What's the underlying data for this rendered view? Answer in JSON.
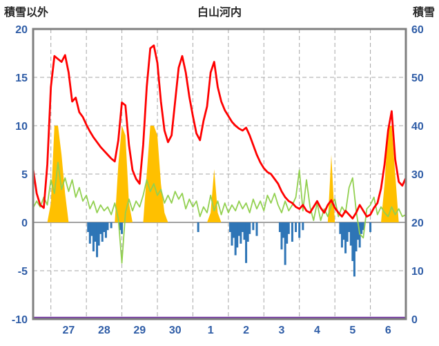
{
  "header": {
    "left_axis_title": "積雪以外",
    "chart_title": "白山河内",
    "right_axis_title": "積雪"
  },
  "chart_data": {
    "type": "line",
    "title": "白山河内",
    "left_axis": {
      "label": "積雪以外",
      "min": -10,
      "max": 20,
      "tick_step": 5,
      "ticks": [
        20,
        15,
        10,
        5,
        0,
        -5,
        -10
      ]
    },
    "right_axis": {
      "label": "積雪",
      "min": 0,
      "max": 60,
      "tick_step": 10,
      "ticks": [
        60,
        50,
        40,
        30,
        20,
        10,
        0
      ]
    },
    "x_axis": {
      "day_labels": [
        "27",
        "28",
        "29",
        "30",
        "1",
        "2",
        "3",
        "4",
        "5",
        "6"
      ],
      "label_positions": [
        1,
        2,
        3,
        4,
        5,
        6,
        7,
        8,
        9,
        10
      ],
      "gridline_positions": [
        0.5,
        1.5,
        2.5,
        3.5,
        4.5,
        5.5,
        6.5,
        7.5,
        8.5,
        9.5
      ],
      "days_total": 10.5
    },
    "colors": {
      "red": "#FF0000",
      "green": "#92D050",
      "orange": "#FFC000",
      "blue": "#2E75B6",
      "purple": "#7030A0",
      "grid": "#A6A6A6",
      "zero_line": "#808080",
      "frame": "#7F7F7F",
      "axis_text": "#2E5CA6",
      "title_text": "#262626"
    },
    "series": [
      {
        "name": "orange-area",
        "type": "area",
        "axis": "left",
        "color": "#FFC000",
        "x_start": 0,
        "x_step": 0.1,
        "values": [
          0,
          0,
          0,
          0,
          0,
          2,
          10,
          10,
          7,
          3,
          0,
          0,
          0,
          0,
          0,
          0,
          0,
          0,
          0,
          0,
          0,
          0,
          0,
          0,
          6,
          10,
          9,
          2,
          0,
          0,
          0,
          0,
          5,
          10,
          10,
          9,
          4,
          1,
          0,
          0,
          0,
          0,
          0,
          0,
          0,
          0,
          0,
          0,
          0,
          0,
          1,
          5.5,
          1,
          0,
          0,
          0,
          0,
          0,
          0,
          0,
          0,
          0,
          0,
          0,
          0,
          0,
          0,
          0,
          0,
          0,
          0,
          0,
          0,
          0,
          0,
          0,
          0,
          0,
          0,
          0,
          0,
          0,
          0,
          0,
          7,
          0,
          0,
          0,
          0,
          0,
          0,
          0,
          0,
          0,
          0,
          0,
          0,
          0,
          0,
          4,
          10,
          10,
          5,
          0,
          0,
          0
        ]
      },
      {
        "name": "blue-bars",
        "type": "bar",
        "axis": "left",
        "color": "#2E75B6",
        "points": [
          [
            1.55,
            -1.0
          ],
          [
            1.6,
            -2.2
          ],
          [
            1.65,
            -1.4
          ],
          [
            1.7,
            -3.0
          ],
          [
            1.75,
            -2.0
          ],
          [
            1.8,
            -3.6
          ],
          [
            1.85,
            -2.4
          ],
          [
            1.9,
            -1.2
          ],
          [
            1.95,
            -2.0
          ],
          [
            2.0,
            -1.0
          ],
          [
            2.05,
            -1.6
          ],
          [
            2.1,
            -0.8
          ],
          [
            2.2,
            -0.6
          ],
          [
            2.45,
            -0.8
          ],
          [
            2.5,
            -1.2
          ],
          [
            4.65,
            -1.0
          ],
          [
            5.55,
            -1.0
          ],
          [
            5.6,
            -2.4
          ],
          [
            5.65,
            -1.6
          ],
          [
            5.7,
            -3.4
          ],
          [
            5.75,
            -2.6
          ],
          [
            5.8,
            -1.4
          ],
          [
            5.85,
            -2.2
          ],
          [
            5.9,
            -1.0
          ],
          [
            5.95,
            -1.8
          ],
          [
            6.0,
            -4.2
          ],
          [
            6.05,
            -2.0
          ],
          [
            6.1,
            -1.2
          ],
          [
            6.2,
            -0.8
          ],
          [
            6.3,
            -1.4
          ],
          [
            6.95,
            -1.0
          ],
          [
            7.0,
            -2.8
          ],
          [
            7.05,
            -1.6
          ],
          [
            7.1,
            -4.4
          ],
          [
            7.15,
            -2.2
          ],
          [
            7.2,
            -1.2
          ],
          [
            7.3,
            -2.0
          ],
          [
            7.4,
            -1.0
          ],
          [
            7.5,
            -1.6
          ],
          [
            7.6,
            -0.8
          ],
          [
            8.65,
            -1.2
          ],
          [
            8.7,
            -2.6
          ],
          [
            8.75,
            -1.8
          ],
          [
            8.8,
            -3.2
          ],
          [
            8.85,
            -2.0
          ],
          [
            8.9,
            -1.0
          ],
          [
            8.95,
            -2.4
          ],
          [
            9.0,
            -4.0
          ],
          [
            9.05,
            -5.6
          ],
          [
            9.1,
            -3.0
          ],
          [
            9.15,
            -1.8
          ],
          [
            9.2,
            -2.6
          ],
          [
            9.25,
            -1.2
          ],
          [
            9.3,
            -0.8
          ],
          [
            9.5,
            -1.0
          ]
        ]
      },
      {
        "name": "green-line",
        "type": "line",
        "axis": "left",
        "color": "#92D050",
        "width": 1.8,
        "x_start": 0,
        "x_step": 0.1,
        "values": [
          1.5,
          2.2,
          1.6,
          2.6,
          1.8,
          4.4,
          3.0,
          6.2,
          3.4,
          4.6,
          3.2,
          4.4,
          2.6,
          3.6,
          2.2,
          2.8,
          1.4,
          2.2,
          1.0,
          1.8,
          1.2,
          1.6,
          0.8,
          2.0,
          0.4,
          -4.2,
          1.0,
          2.4,
          1.2,
          2.2,
          1.6,
          2.8,
          4.4,
          3.2,
          4.0,
          2.8,
          3.4,
          2.0,
          2.8,
          2.0,
          3.2,
          2.4,
          3.0,
          1.4,
          2.4,
          1.6,
          2.2,
          0.6,
          1.6,
          1.0,
          2.8,
          1.2,
          2.2,
          0.8,
          2.0,
          1.0,
          1.8,
          1.2,
          2.2,
          1.4,
          2.0,
          1.0,
          2.4,
          1.4,
          2.2,
          1.2,
          2.8,
          2.0,
          3.0,
          1.8,
          1.0,
          2.2,
          1.2,
          1.8,
          2.6,
          5.4,
          1.2,
          4.4,
          1.6,
          0.2,
          2.0,
          0.2,
          1.4,
          0.6,
          1.8,
          2.4,
          0.6,
          1.6,
          1.0,
          3.6,
          4.6,
          1.2,
          -1.2,
          -1.6,
          1.4,
          1.8,
          2.6,
          0.8,
          1.6,
          1.0,
          0.6,
          1.6,
          0.8,
          1.4,
          0.6,
          0.8
        ]
      },
      {
        "name": "red-line",
        "type": "line",
        "axis": "left",
        "color": "#FF0000",
        "width": 2.8,
        "x_start": 0,
        "x_step": 0.1,
        "values": [
          5.5,
          3.0,
          1.8,
          1.5,
          6.0,
          14.0,
          17.2,
          16.9,
          16.6,
          17.3,
          15.5,
          12.5,
          12.9,
          11.4,
          10.9,
          10.1,
          9.4,
          8.8,
          8.3,
          7.8,
          7.4,
          7.0,
          6.6,
          6.3,
          8.5,
          12.4,
          12.1,
          8.0,
          5.4,
          4.5,
          4.0,
          8.0,
          14.0,
          18.0,
          18.3,
          16.5,
          12.5,
          9.5,
          8.3,
          9.0,
          12.5,
          16.0,
          17.2,
          15.5,
          13.0,
          11.0,
          9.2,
          8.5,
          10.5,
          12.0,
          15.5,
          16.6,
          14.0,
          12.5,
          11.6,
          11.0,
          10.4,
          10.0,
          9.7,
          9.5,
          9.8,
          9.0,
          8.0,
          7.0,
          6.2,
          5.6,
          5.2,
          5.0,
          4.5,
          4.0,
          3.2,
          2.6,
          2.2,
          2.0,
          1.6,
          1.4,
          1.8,
          1.2,
          1.0,
          1.6,
          2.2,
          1.5,
          1.0,
          1.8,
          2.3,
          1.5,
          1.0,
          0.6,
          1.2,
          0.8,
          0.4,
          1.0,
          1.8,
          1.2,
          0.6,
          0.8,
          1.5,
          2.0,
          3.5,
          6.0,
          9.5,
          11.5,
          6.5,
          4.2,
          3.8,
          4.6
        ]
      },
      {
        "name": "purple-line",
        "type": "line",
        "axis": "left",
        "color": "#7030A0",
        "width": 2.5,
        "points": [
          [
            0,
            -10
          ],
          [
            10.5,
            -10
          ]
        ]
      }
    ]
  }
}
